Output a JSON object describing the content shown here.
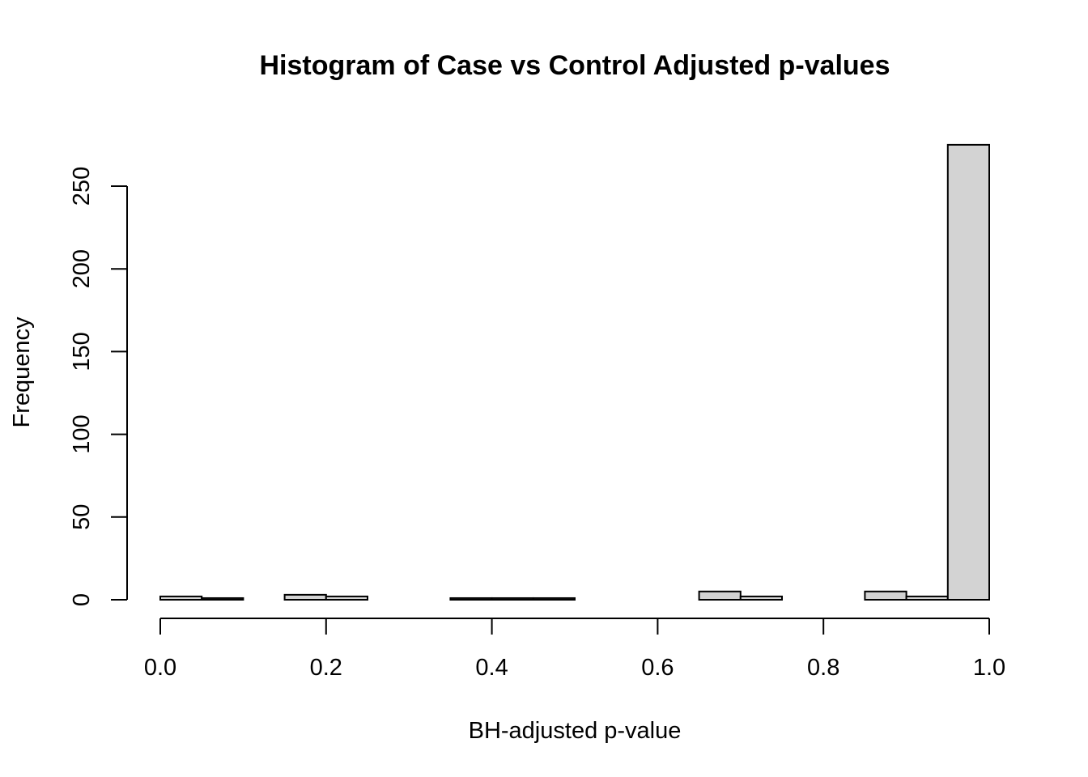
{
  "chart_data": {
    "type": "bar",
    "title": "Histogram of Case vs Control Adjusted p-values",
    "xlabel": "BH-adjusted p-value",
    "ylabel": "Frequency",
    "xlim": [
      0,
      1
    ],
    "ylim": [
      0,
      275
    ],
    "x_ticks": [
      "0.0",
      "0.2",
      "0.4",
      "0.6",
      "0.8",
      "1.0"
    ],
    "y_ticks": [
      "0",
      "50",
      "100",
      "150",
      "200",
      "250"
    ],
    "bin_edges": [
      0.0,
      0.05,
      0.1,
      0.15,
      0.2,
      0.25,
      0.3,
      0.35,
      0.4,
      0.45,
      0.5,
      0.55,
      0.6,
      0.65,
      0.7,
      0.75,
      0.8,
      0.85,
      0.9,
      0.95,
      1.0
    ],
    "values": [
      2,
      1,
      0,
      3,
      2,
      0,
      0,
      1,
      1,
      1,
      0,
      0,
      0,
      5,
      2,
      0,
      0,
      5,
      2,
      275
    ],
    "grid": false,
    "bar_color": "#d3d3d3"
  }
}
